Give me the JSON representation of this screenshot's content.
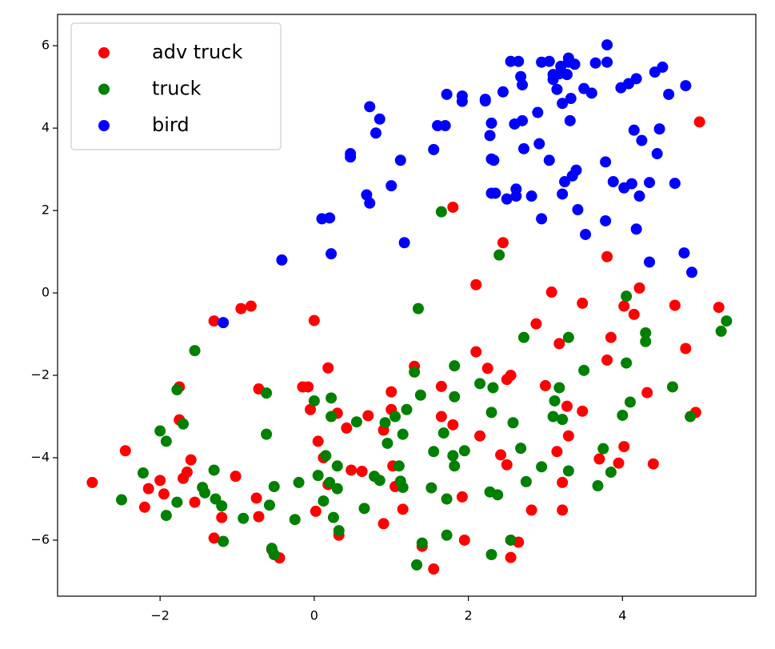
{
  "chart_data": {
    "type": "scatter",
    "legend": "upper left",
    "grid": false,
    "xlim": [
      -3.33,
      5.73
    ],
    "ylim": [
      -7.36,
      6.76
    ],
    "xticks": [
      {
        "value": -2,
        "label": "−2"
      },
      0,
      2,
      4
    ],
    "yticks": [
      {
        "value": -6,
        "label": "−6"
      },
      {
        "value": -4,
        "label": "−4"
      },
      {
        "value": -2,
        "label": "−2"
      },
      0,
      2,
      4,
      6
    ],
    "series": [
      {
        "name": "adv truck",
        "color": "#ff0000",
        "x": [
          -2.88,
          -2.45,
          -2.2,
          -2.15,
          -2.0,
          -1.95,
          -1.75,
          -1.75,
          -1.7,
          -1.65,
          -1.6,
          -1.55,
          -1.3,
          -1.3,
          -1.2,
          -1.02,
          -0.95,
          -0.82,
          -0.75,
          -0.72,
          -0.72,
          -0.55,
          -0.45,
          -0.15,
          -0.08,
          -0.05,
          0.0,
          0.02,
          0.05,
          0.12,
          0.18,
          0.18,
          0.3,
          0.32,
          0.42,
          0.48,
          0.62,
          0.7,
          0.9,
          0.9,
          1.0,
          1.0,
          1.02,
          1.05,
          1.15,
          1.3,
          1.4,
          1.55,
          1.65,
          1.65,
          1.8,
          1.8,
          1.92,
          1.95,
          2.1,
          2.1,
          2.15,
          2.25,
          2.42,
          2.45,
          2.5,
          2.5,
          2.55,
          2.55,
          2.65,
          2.82,
          2.88,
          3.0,
          3.08,
          3.15,
          3.18,
          3.22,
          3.22,
          3.28,
          3.3,
          3.48,
          3.48,
          3.7,
          3.8,
          3.8,
          3.85,
          3.95,
          4.02,
          4.02,
          4.15,
          4.22,
          4.32,
          4.4,
          4.68,
          4.82,
          4.95,
          5.0,
          5.25
        ],
        "values": [
          -4.6,
          -3.83,
          -5.2,
          -4.75,
          -4.55,
          -4.88,
          -2.28,
          -3.08,
          -4.5,
          -4.35,
          -4.05,
          -5.08,
          -0.68,
          -5.95,
          -5.45,
          -4.45,
          -0.38,
          -0.32,
          -4.98,
          -2.33,
          -5.43,
          -6.23,
          -6.43,
          -2.28,
          -2.28,
          -2.83,
          -0.67,
          -5.3,
          -3.6,
          -4.0,
          -1.82,
          -4.65,
          -2.92,
          -5.88,
          -3.28,
          -4.3,
          -4.33,
          -2.98,
          -3.33,
          -5.6,
          -2.4,
          -2.83,
          -4.2,
          -4.7,
          -5.25,
          -1.78,
          -6.15,
          -6.7,
          -2.27,
          -3.0,
          -3.2,
          2.08,
          -4.95,
          -6.0,
          -1.43,
          0.2,
          -3.47,
          -1.83,
          -3.93,
          1.22,
          -2.1,
          -4.17,
          -6.42,
          -2.0,
          -6.05,
          -5.27,
          -0.75,
          -2.25,
          0.02,
          -3.85,
          -1.23,
          -4.6,
          -5.27,
          -2.75,
          -3.47,
          -0.25,
          -2.87,
          -4.03,
          0.88,
          -1.63,
          -1.08,
          -4.13,
          -0.32,
          -3.73,
          -0.52,
          0.12,
          -2.42,
          -4.15,
          -0.3,
          -1.35,
          -2.9,
          4.15,
          -0.35
        ]
      },
      {
        "name": "truck",
        "color": "#008000",
        "x": [
          -2.5,
          -2.22,
          -2.0,
          -1.92,
          -1.92,
          -1.78,
          -1.78,
          -1.7,
          -1.55,
          -1.45,
          -1.42,
          -1.3,
          -1.28,
          -1.2,
          -1.18,
          -0.92,
          -0.62,
          -0.62,
          -0.58,
          -0.55,
          -0.52,
          -0.52,
          -0.25,
          -0.2,
          0.0,
          0.05,
          0.12,
          0.15,
          0.2,
          0.22,
          0.22,
          0.25,
          0.3,
          0.3,
          0.32,
          0.55,
          0.65,
          0.78,
          0.85,
          0.92,
          0.95,
          1.05,
          1.1,
          1.12,
          1.15,
          1.15,
          1.2,
          1.3,
          1.33,
          1.35,
          1.38,
          1.4,
          1.52,
          1.55,
          1.65,
          1.68,
          1.72,
          1.72,
          1.8,
          1.82,
          1.82,
          1.82,
          1.95,
          2.15,
          2.28,
          2.3,
          2.3,
          2.32,
          2.38,
          2.4,
          2.55,
          2.58,
          2.68,
          2.72,
          2.75,
          2.95,
          3.1,
          3.12,
          3.18,
          3.22,
          3.3,
          3.3,
          3.5,
          3.68,
          3.75,
          3.85,
          4.0,
          4.05,
          4.05,
          4.1,
          4.3,
          4.3,
          4.65,
          4.88,
          5.28,
          5.35
        ],
        "values": [
          -5.02,
          -4.37,
          -3.35,
          -3.6,
          -5.4,
          -5.08,
          -2.35,
          -3.18,
          -1.4,
          -4.72,
          -4.85,
          -4.3,
          -5.0,
          -5.17,
          -6.03,
          -5.47,
          -2.43,
          -3.43,
          -5.15,
          -6.2,
          -6.35,
          -4.7,
          -5.5,
          -4.6,
          -2.62,
          -4.43,
          -5.05,
          -3.95,
          -4.6,
          -2.55,
          -3.0,
          -5.45,
          -4.75,
          -4.2,
          -5.77,
          -3.13,
          -5.23,
          -4.45,
          -4.55,
          -3.15,
          -3.65,
          -3.0,
          -4.2,
          -4.57,
          -4.72,
          -3.43,
          -2.83,
          -1.92,
          -6.6,
          -0.38,
          -2.48,
          -6.07,
          -4.73,
          -3.85,
          1.97,
          -3.4,
          -5.88,
          -5.0,
          -3.95,
          -4.2,
          -1.77,
          -2.52,
          -3.83,
          -2.2,
          -4.83,
          -6.35,
          -2.9,
          -2.3,
          -4.9,
          0.92,
          -6.0,
          -3.15,
          -3.77,
          -1.08,
          -4.58,
          -4.22,
          -3.0,
          -2.62,
          -2.3,
          -3.07,
          -1.08,
          -4.32,
          -1.88,
          -4.68,
          -3.78,
          -4.35,
          -2.97,
          -0.08,
          -1.7,
          -2.65,
          -1.18,
          -0.97,
          -2.28,
          -3.0,
          -0.93,
          -0.68
        ]
      },
      {
        "name": "bird",
        "color": "#0000ff",
        "x": [
          -0.42,
          -1.18,
          0.1,
          0.2,
          0.22,
          0.47,
          0.47,
          0.68,
          0.72,
          0.72,
          0.8,
          0.85,
          1.0,
          1.12,
          1.17,
          1.55,
          1.6,
          1.7,
          1.72,
          1.92,
          1.92,
          2.22,
          2.22,
          2.28,
          2.3,
          2.3,
          2.33,
          2.3,
          2.35,
          2.45,
          2.5,
          2.55,
          2.6,
          2.62,
          2.62,
          2.65,
          2.68,
          2.7,
          2.7,
          2.72,
          2.82,
          2.9,
          2.92,
          2.95,
          2.95,
          3.05,
          3.05,
          3.1,
          3.1,
          3.15,
          3.18,
          3.2,
          3.22,
          3.22,
          3.25,
          3.28,
          3.3,
          3.3,
          3.32,
          3.33,
          3.35,
          3.38,
          3.4,
          3.42,
          3.5,
          3.52,
          3.6,
          3.65,
          3.78,
          3.78,
          3.8,
          3.8,
          3.88,
          3.98,
          4.02,
          4.08,
          4.12,
          4.15,
          4.18,
          4.18,
          4.22,
          4.25,
          4.35,
          4.35,
          4.42,
          4.45,
          4.48,
          4.52,
          4.6,
          4.68,
          4.8,
          4.82,
          4.9
        ],
        "values": [
          0.8,
          -0.72,
          1.8,
          1.82,
          0.95,
          3.3,
          3.38,
          2.38,
          2.18,
          4.52,
          3.88,
          4.22,
          2.6,
          3.22,
          1.22,
          3.48,
          4.06,
          4.06,
          4.82,
          4.78,
          4.65,
          4.7,
          4.66,
          3.82,
          4.12,
          3.25,
          3.22,
          2.42,
          2.42,
          4.88,
          2.28,
          5.62,
          4.1,
          2.52,
          2.35,
          5.62,
          5.25,
          5.05,
          4.18,
          3.5,
          2.35,
          4.38,
          3.62,
          1.8,
          5.6,
          3.22,
          5.62,
          5.3,
          5.18,
          4.94,
          5.32,
          5.5,
          4.6,
          2.4,
          2.7,
          5.3,
          5.6,
          5.7,
          4.18,
          4.72,
          2.84,
          5.55,
          2.98,
          2.02,
          4.96,
          1.42,
          4.85,
          5.58,
          1.75,
          3.18,
          5.6,
          6.02,
          2.7,
          4.98,
          2.55,
          5.08,
          2.65,
          3.95,
          1.55,
          5.2,
          2.35,
          3.7,
          2.68,
          0.75,
          5.36,
          3.38,
          3.98,
          5.48,
          4.82,
          2.66,
          0.97,
          5.03,
          0.5
        ]
      }
    ]
  }
}
